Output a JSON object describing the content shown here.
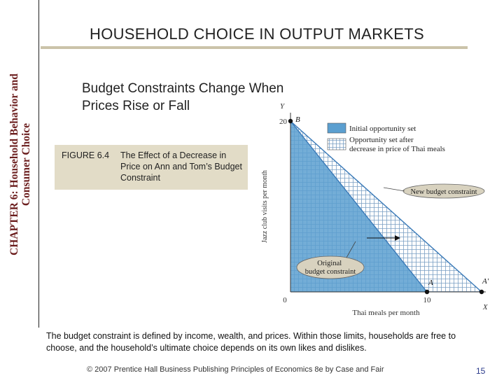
{
  "side_title": {
    "line1": "CHAPTER 6:  Household Behavior and",
    "line2": "Consumer Choice"
  },
  "title": "HOUSEHOLD CHOICE IN OUTPUT MARKETS",
  "subtitle": "Budget Constraints Change When Prices Rise or Fall",
  "figure": {
    "label": "FIGURE 6.4",
    "caption": "The Effect of a Decrease in Price on Ann and Tom’s Budget Constraint"
  },
  "chart_data": {
    "type": "line",
    "title": "",
    "xlabel": "Thai meals per month",
    "ylabel": "Jazz club visits per month",
    "x_axis_letter": "X",
    "y_axis_letter": "Y",
    "xlim": [
      0,
      14.3
    ],
    "ylim": [
      0,
      20
    ],
    "x_ticks": [
      {
        "value": 0,
        "label": "0"
      },
      {
        "value": 10,
        "label": "10"
      }
    ],
    "y_ticks": [
      {
        "value": 20,
        "label": "20"
      }
    ],
    "series": [
      {
        "name": "Initial opportunity set",
        "points": [
          [
            0,
            20
          ],
          [
            10,
            0
          ]
        ],
        "color": "#4a90c8"
      },
      {
        "name": "Opportunity set after decrease in price of Thai meals",
        "points": [
          [
            0,
            20
          ],
          [
            14,
            0
          ]
        ],
        "color": "#4a90c8"
      }
    ],
    "points": [
      {
        "label": "B",
        "x": 0,
        "y": 20
      },
      {
        "label": "A",
        "x": 10,
        "y": 0
      },
      {
        "label": "A'",
        "x": 14,
        "y": 0
      }
    ],
    "legend": [
      {
        "label": "Initial opportunity set",
        "swatch": "solid"
      },
      {
        "label": "Opportunity set after decrease in price of Thai meals",
        "swatch": "grid"
      }
    ],
    "annotations": [
      {
        "text": "New budget constraint"
      },
      {
        "text": "Original budget constraint"
      }
    ]
  },
  "body_text": "The budget constraint is defined by income, wealth, and prices.  Within those limits, households are free to choose, and the household’s ultimate choice depends on its own likes and dislikes.",
  "footer": "© 2007 Prentice Hall Business Publishing   Principles of Economics 8e by Case and Fair",
  "page_number": "15"
}
